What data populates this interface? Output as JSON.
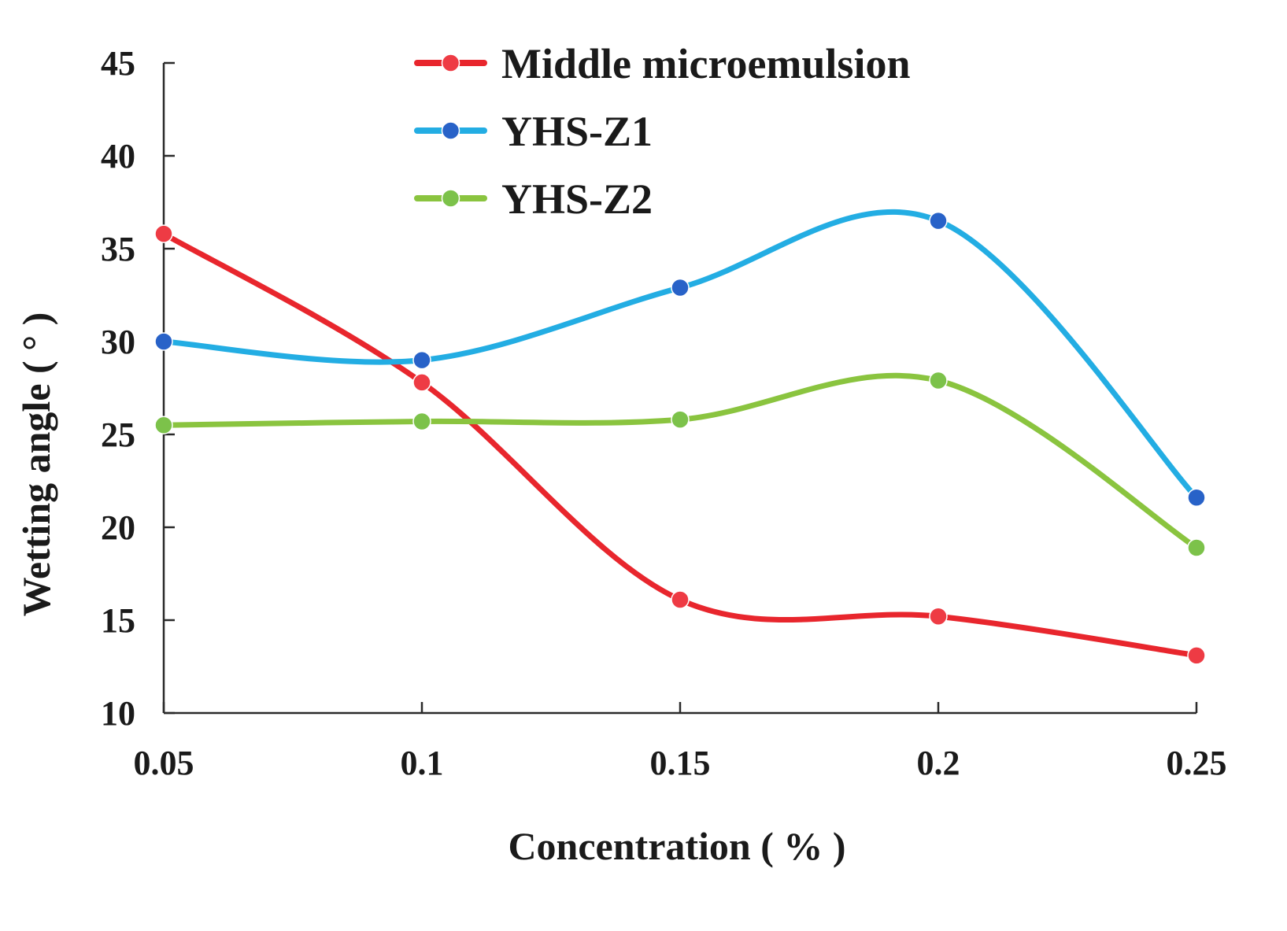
{
  "chart_data": {
    "type": "line",
    "smooth": true,
    "title": "",
    "xlabel": "Concentration ( % )",
    "ylabel": "Wetting angle ( ° )",
    "x": [
      0.05,
      0.1,
      0.15,
      0.2,
      0.25
    ],
    "x_tick_labels": [
      "0.05",
      "0.1",
      "0.15",
      "0.2",
      "0.25"
    ],
    "y_tick_labels": [
      "10",
      "15",
      "20",
      "25",
      "30",
      "35",
      "40",
      "45"
    ],
    "xlim": [
      0.05,
      0.25
    ],
    "ylim": [
      10,
      45
    ],
    "legend_position": "top",
    "series": [
      {
        "name": "Middle microemulsion",
        "color": "#e8262d",
        "marker_color": "#ee3b44",
        "values": [
          35.8,
          27.8,
          16.1,
          15.2,
          13.1
        ]
      },
      {
        "name": "YHS-Z1",
        "color": "#23ade3",
        "marker_color": "#2862c8",
        "values": [
          30.0,
          29.0,
          32.9,
          36.5,
          21.6
        ]
      },
      {
        "name": "YHS-Z2",
        "color": "#8ac43f",
        "marker_color": "#7cc24a",
        "values": [
          25.5,
          25.7,
          25.8,
          27.9,
          18.9
        ]
      }
    ]
  }
}
